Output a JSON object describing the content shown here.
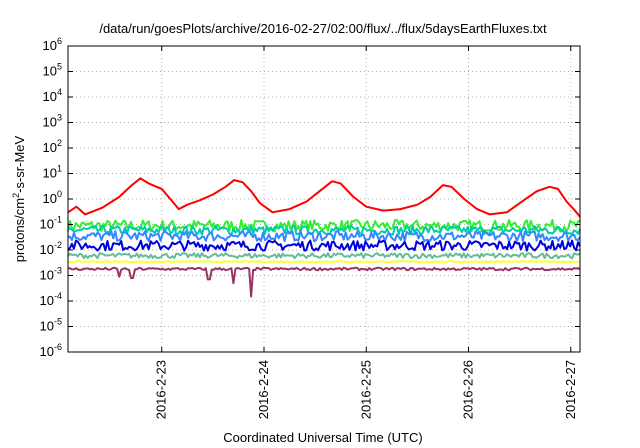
{
  "chart_data": {
    "type": "line",
    "title": "/data/run/goesPlots/archive/2016-02-27/02:00/flux/../flux/5daysEarthFluxes.txt",
    "xlabel": "Coordinated Universal Time (UTC)",
    "ylabel": "protons/cm²-s-sr-MeV",
    "ylabel_parts": {
      "base": "protons/cm",
      "sup": "2",
      "rest": "-s-sr-MeV"
    },
    "xlim": [
      "2016-02-22T02:00",
      "2016-02-27T02:10"
    ],
    "ylim": [
      1e-06,
      1000000
    ],
    "y_scale": "log",
    "grid": true,
    "legend": "none",
    "x_ticks": [
      {
        "date": "2016-02-23T00:00",
        "label": "2016-2-23"
      },
      {
        "date": "2016-02-24T00:00",
        "label": "2016-2-24"
      },
      {
        "date": "2016-02-25T00:00",
        "label": "2016-2-25"
      },
      {
        "date": "2016-02-26T00:00",
        "label": "2016-2-26"
      },
      {
        "date": "2016-02-27T00:00",
        "label": "2016-2-27"
      }
    ],
    "y_ticks": [
      {
        "value": 1e-06,
        "base": "10",
        "exp": "-6"
      },
      {
        "value": 1e-05,
        "base": "10",
        "exp": "-5"
      },
      {
        "value": 0.0001,
        "base": "10",
        "exp": "-4"
      },
      {
        "value": 0.001,
        "base": "10",
        "exp": "-3"
      },
      {
        "value": 0.01,
        "base": "10",
        "exp": "-2"
      },
      {
        "value": 0.1,
        "base": "10",
        "exp": "-1"
      },
      {
        "value": 1,
        "base": "10",
        "exp": "0"
      },
      {
        "value": 10,
        "base": "10",
        "exp": "1"
      },
      {
        "value": 100,
        "base": "10",
        "exp": "2"
      },
      {
        "value": 1000,
        "base": "10",
        "exp": "3"
      },
      {
        "value": 10000,
        "base": "10",
        "exp": "4"
      },
      {
        "value": 100000,
        "base": "10",
        "exp": "5"
      },
      {
        "value": 1000000,
        "base": "10",
        "exp": "6"
      }
    ],
    "series": [
      {
        "color": "#ff0000",
        "points": [
          [
            "2016-02-22T02:00",
            0.3
          ],
          [
            "2016-02-22T04:00",
            0.5
          ],
          [
            "2016-02-22T06:00",
            0.25
          ],
          [
            "2016-02-22T10:00",
            0.45
          ],
          [
            "2016-02-22T14:00",
            1.2
          ],
          [
            "2016-02-22T17:00",
            3.5
          ],
          [
            "2016-02-22T19:00",
            6.5
          ],
          [
            "2016-02-22T21:00",
            4.0
          ],
          [
            "2016-02-23T00:00",
            2.5
          ],
          [
            "2016-02-23T02:00",
            1.0
          ],
          [
            "2016-02-23T04:00",
            0.4
          ],
          [
            "2016-02-23T06:00",
            0.6
          ],
          [
            "2016-02-23T09:00",
            0.9
          ],
          [
            "2016-02-23T12:00",
            1.5
          ],
          [
            "2016-02-23T15:00",
            3.0
          ],
          [
            "2016-02-23T17:00",
            5.5
          ],
          [
            "2016-02-23T19:00",
            4.5
          ],
          [
            "2016-02-23T21:00",
            2.0
          ],
          [
            "2016-02-23T23:00",
            0.7
          ],
          [
            "2016-02-24T02:00",
            0.3
          ],
          [
            "2016-02-24T06:00",
            0.4
          ],
          [
            "2016-02-24T10:00",
            0.8
          ],
          [
            "2016-02-24T13:00",
            2.0
          ],
          [
            "2016-02-24T16:00",
            5.0
          ],
          [
            "2016-02-24T18:00",
            4.0
          ],
          [
            "2016-02-24T21:00",
            1.2
          ],
          [
            "2016-02-25T00:00",
            0.5
          ],
          [
            "2016-02-25T04:00",
            0.35
          ],
          [
            "2016-02-25T08:00",
            0.4
          ],
          [
            "2016-02-25T12:00",
            0.6
          ],
          [
            "2016-02-25T15:00",
            1.2
          ],
          [
            "2016-02-25T18:00",
            3.5
          ],
          [
            "2016-02-25T20:00",
            3.0
          ],
          [
            "2016-02-25T23:00",
            1.0
          ],
          [
            "2016-02-26T02:00",
            0.4
          ],
          [
            "2016-02-26T05:00",
            0.25
          ],
          [
            "2016-02-26T09:00",
            0.3
          ],
          [
            "2016-02-26T13:00",
            0.9
          ],
          [
            "2016-02-26T16:00",
            2.0
          ],
          [
            "2016-02-26T19:00",
            3.0
          ],
          [
            "2016-02-26T21:00",
            2.5
          ],
          [
            "2016-02-26T23:00",
            0.8
          ],
          [
            "2016-02-27T01:00",
            0.35
          ],
          [
            "2016-02-27T02:10",
            0.2
          ]
        ]
      },
      {
        "color": "#33ee33",
        "base": 0.09,
        "noise": 0.45,
        "dips": []
      },
      {
        "color": "#00ccaa",
        "base": 0.06,
        "noise": 0.35,
        "dips": []
      },
      {
        "color": "#3388ff",
        "base": 0.035,
        "noise": 0.4,
        "dips": []
      },
      {
        "color": "#0000dd",
        "base": 0.015,
        "noise": 0.4,
        "dips": []
      },
      {
        "color": "#66bb99",
        "base": 0.006,
        "noise": 0.2,
        "dips": []
      },
      {
        "color": "#ffff33",
        "base": 0.0035,
        "noise": 0.05,
        "dips": []
      },
      {
        "color": "#993366",
        "base": 0.0018,
        "noise": 0.1,
        "dips": [
          [
            "2016-02-22T14:00",
            0.0009
          ],
          [
            "2016-02-22T17:00",
            0.0008
          ],
          [
            "2016-02-23T11:00",
            0.0007
          ],
          [
            "2016-02-23T17:00",
            0.0005
          ],
          [
            "2016-02-23T21:00",
            0.00015
          ]
        ]
      }
    ]
  }
}
